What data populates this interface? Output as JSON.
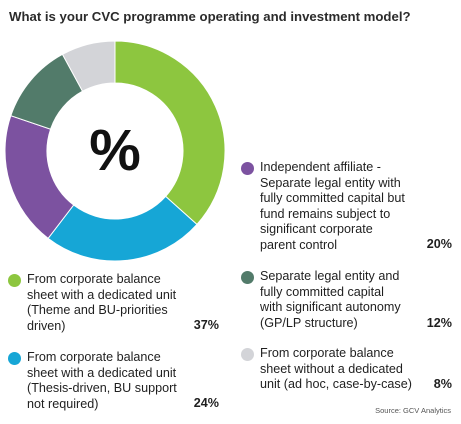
{
  "title": "What is your CVC programme operating and investment model?",
  "center_symbol": "%",
  "source": "Source: GCV Analytics",
  "chart_data": {
    "type": "donut",
    "title": "What is your CVC programme operating and investment model?",
    "unit": "%",
    "slices": [
      {
        "label": "From corporate balance sheet with a dedicated unit (Theme and BU-priorities driven)",
        "value": 37,
        "display": "37%",
        "color": "#8dc63f"
      },
      {
        "label": "From corporate balance sheet with a dedicated unit (Thesis-driven, BU support not required)",
        "value": 24,
        "display": "24%",
        "color": "#16a6d6"
      },
      {
        "label": "Independent affiliate - Separate legal entity with fully committed capital but fund remains subject to significant corporate parent control",
        "value": 20,
        "display": "20%",
        "color": "#7c52a0"
      },
      {
        "label": "Separate legal entity and fully committed capital with significant autonomy (GP/LP structure)",
        "value": 12,
        "display": "12%",
        "color": "#527b6a"
      },
      {
        "label": "From corporate balance sheet without a dedicated unit (ad hoc, case-by-case)",
        "value": 8,
        "display": "8%",
        "color": "#d3d4d8"
      }
    ]
  },
  "legend": [
    {
      "text": "From corporate balance\nsheet with a dedicated unit\n(Theme and BU-priorities\ndriven)",
      "pct": "37%",
      "color": "#8dc63f"
    },
    {
      "text": "From corporate balance\nsheet with a dedicated unit\n(Thesis-driven, BU support\nnot required)",
      "pct": "24%",
      "color": "#16a6d6"
    },
    {
      "text": "Independent affiliate -\nSeparate legal entity with\nfully committed capital but\nfund remains subject to\nsignificant corporate\nparent control",
      "pct": "20%",
      "color": "#7c52a0"
    },
    {
      "text": "Separate legal entity and\nfully committed capital\nwith significant autonomy\n(GP/LP structure)",
      "pct": "12%",
      "color": "#527b6a"
    },
    {
      "text": "From corporate balance\nsheet without a dedicated\nunit (ad hoc, case-by-case)",
      "pct": "8%",
      "color": "#d3d4d8"
    }
  ]
}
